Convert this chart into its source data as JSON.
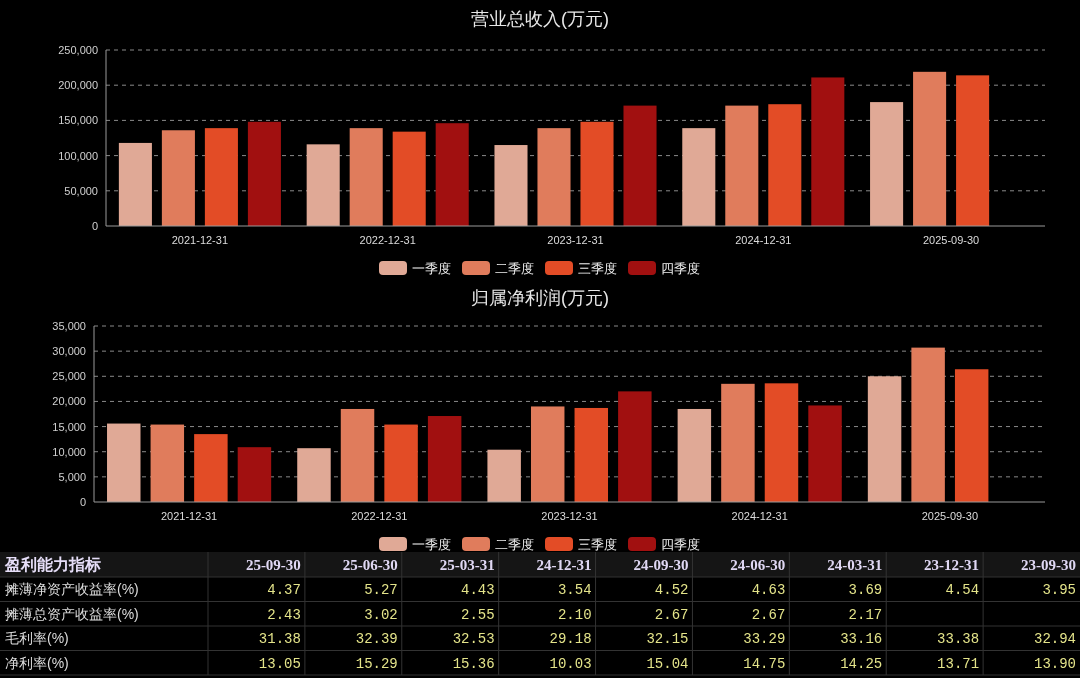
{
  "chart_data": [
    {
      "type": "bar",
      "title": "营业总收入(万元)",
      "categories": [
        "2021-12-31",
        "2022-12-31",
        "2023-12-31",
        "2024-12-31",
        "2025-09-30"
      ],
      "series": [
        {
          "name": "一季度",
          "color": "#e0a996",
          "values": [
            118000,
            116000,
            115000,
            139000,
            176000
          ]
        },
        {
          "name": "二季度",
          "color": "#e07c5c",
          "values": [
            136000,
            139000,
            139000,
            171000,
            219000
          ]
        },
        {
          "name": "三季度",
          "color": "#e34c26",
          "values": [
            139000,
            134000,
            148000,
            173000,
            214000
          ]
        },
        {
          "name": "四季度",
          "color": "#a11010",
          "values": [
            148000,
            146000,
            171000,
            211000,
            null
          ]
        }
      ],
      "ylim": [
        0,
        250000
      ],
      "yticks": [
        0,
        {
          "value": 50000,
          "label": "50,000"
        },
        {
          "value": 100000,
          "label": "100,000"
        },
        {
          "value": 150000,
          "label": "150,000"
        },
        {
          "value": 200000,
          "label": "200,000"
        },
        {
          "value": 250000,
          "label": "250,000"
        }
      ],
      "grid": "y",
      "legend": "bottom"
    },
    {
      "type": "bar",
      "title": "归属净利润(万元)",
      "categories": [
        "2021-12-31",
        "2022-12-31",
        "2023-12-31",
        "2024-12-31",
        "2025-09-30"
      ],
      "series": [
        {
          "name": "一季度",
          "color": "#e0a996",
          "values": [
            15600,
            10700,
            10400,
            18500,
            25000
          ]
        },
        {
          "name": "二季度",
          "color": "#e07c5c",
          "values": [
            15400,
            18500,
            19000,
            23500,
            30700
          ]
        },
        {
          "name": "三季度",
          "color": "#e34c26",
          "values": [
            13500,
            15400,
            18700,
            23600,
            26400
          ]
        },
        {
          "name": "四季度",
          "color": "#a11010",
          "values": [
            10900,
            17100,
            22000,
            19200,
            null
          ]
        }
      ],
      "ylim": [
        0,
        35000
      ],
      "yticks": [
        0,
        {
          "value": 5000,
          "label": "5,000"
        },
        {
          "value": 10000,
          "label": "10,000"
        },
        {
          "value": 15000,
          "label": "15,000"
        },
        {
          "value": 20000,
          "label": "20,000"
        },
        {
          "value": 25000,
          "label": "25,000"
        },
        {
          "value": 30000,
          "label": "30,000"
        },
        {
          "value": 35000,
          "label": "35,000"
        }
      ],
      "grid": "y",
      "legend": "bottom"
    },
    {
      "type": "other",
      "title": "盈利能力指标",
      "categories": [
        "25-09-30",
        "25-06-30",
        "25-03-31",
        "24-12-31",
        "24-09-30",
        "24-06-30",
        "24-03-31",
        "23-12-31",
        "23-09-30"
      ],
      "series": [
        {
          "name": "摊薄净资产收益率(%)",
          "values": [
            4.37,
            5.27,
            4.43,
            3.54,
            4.52,
            4.63,
            3.69,
            4.54,
            3.95
          ],
          "value_labels": [
            "4.37",
            "5.27",
            "4.43",
            "3.54",
            "4.52",
            "4.63",
            "3.69",
            "4.54",
            "3.95"
          ]
        },
        {
          "name": "摊薄总资产收益率(%)",
          "values": [
            2.43,
            3.02,
            2.55,
            2.1,
            2.67,
            2.67,
            2.17,
            null,
            null
          ],
          "value_labels": [
            "2.43",
            "3.02",
            "2.55",
            "2.10",
            "2.67",
            "2.67",
            "2.17",
            null,
            null
          ]
        },
        {
          "name": "毛利率(%)",
          "values": [
            31.38,
            32.39,
            32.53,
            29.18,
            32.15,
            33.29,
            33.16,
            33.38,
            32.94
          ],
          "value_labels": [
            "31.38",
            "32.39",
            "32.53",
            "29.18",
            "32.15",
            "33.29",
            "33.16",
            "33.38",
            "32.94"
          ]
        },
        {
          "name": "净利率(%)",
          "values": [
            13.05,
            15.29,
            15.36,
            10.03,
            15.04,
            14.75,
            14.25,
            13.71,
            13.9
          ],
          "value_labels": [
            "13.05",
            "15.29",
            "15.36",
            "10.03",
            "15.04",
            "14.75",
            "14.25",
            "13.71",
            "13.90"
          ]
        }
      ]
    }
  ]
}
